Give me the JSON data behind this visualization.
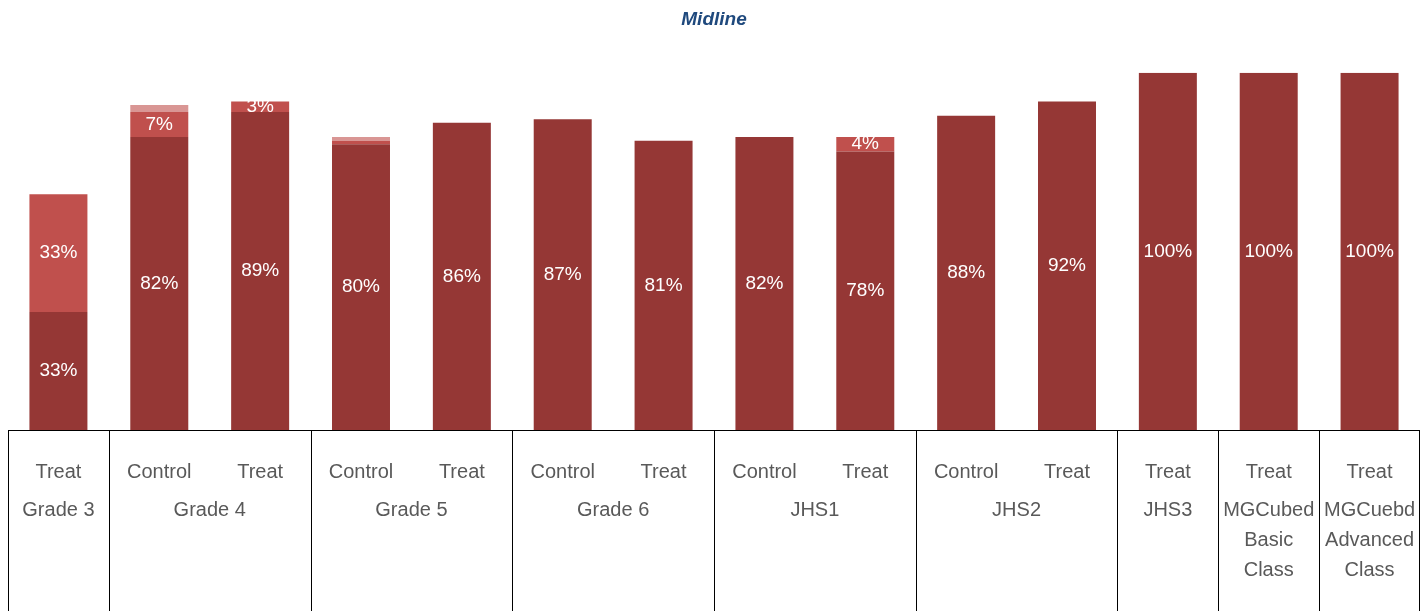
{
  "chart_data": {
    "type": "bar",
    "title": "Midline",
    "stacked": true,
    "categories": [
      "Treat\nGrade 3",
      "Control\nGrade 4",
      "Treat",
      "Control\nGrade 5",
      "Treat",
      "Control\nGrade 6",
      "Treat",
      "Control\nJHS1",
      "Treat",
      "Control\nJHS2",
      "Treat",
      "Treat\nJHS3",
      "Treat\nMGCubed\nBasic\nClass",
      "Treat\nMGCuebd\nAdvanced\nClass"
    ],
    "series": [
      {
        "color": "#953735",
        "values": [
          33,
          82,
          89,
          80,
          86,
          87,
          81,
          82,
          78,
          88,
          92,
          100,
          100,
          100
        ],
        "value_labels": [
          "33%",
          "82%",
          "89%",
          "80%",
          "86%",
          "87%",
          "81%",
          "82%",
          "78%",
          "88%",
          "92%",
          "100%",
          "100%",
          "100%"
        ]
      },
      {
        "color": "#c0504d",
        "values": [
          33,
          7,
          3,
          1,
          null,
          null,
          null,
          null,
          4,
          null,
          null,
          null,
          null,
          null
        ],
        "value_labels": [
          "33%",
          "7%",
          "3%",
          null,
          null,
          null,
          null,
          null,
          "4%",
          null,
          null,
          null,
          null,
          null
        ]
      },
      {
        "color": "#d99694",
        "values": [
          null,
          2,
          null,
          1,
          null,
          null,
          null,
          null,
          null,
          null,
          null,
          null,
          null,
          null
        ],
        "value_labels": [
          null,
          null,
          null,
          null,
          null,
          null,
          null,
          null,
          null,
          null,
          null,
          null,
          null,
          null
        ]
      }
    ]
  }
}
